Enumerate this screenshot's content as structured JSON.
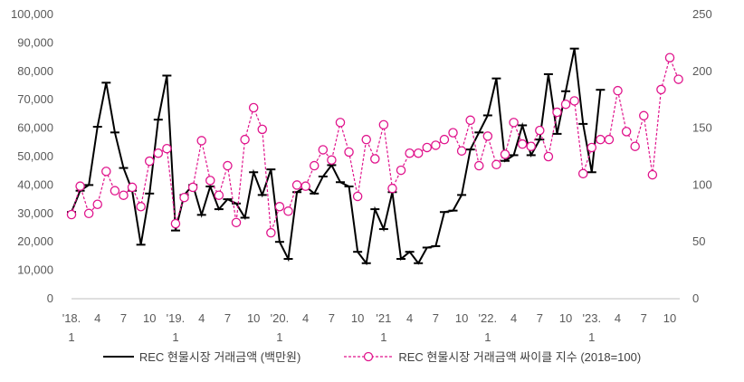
{
  "chart_data": {
    "type": "line",
    "title": "",
    "xlabel": "",
    "ylabel": "",
    "y_left": {
      "ylim": [
        0,
        100000
      ],
      "ticks": [
        "0",
        "10,000",
        "20,000",
        "30,000",
        "40,000",
        "50,000",
        "60,000",
        "70,000",
        "80,000",
        "90,000",
        "100,000"
      ]
    },
    "y_right": {
      "ylim": [
        0,
        250
      ],
      "ticks": [
        "0",
        "50",
        "100",
        "150",
        "200",
        "250"
      ]
    },
    "x_tick_labels": [
      {
        "i": 0,
        "top": "'18.",
        "bottom": "1"
      },
      {
        "i": 3,
        "top": "4",
        "bottom": ""
      },
      {
        "i": 6,
        "top": "7",
        "bottom": ""
      },
      {
        "i": 9,
        "top": "10",
        "bottom": ""
      },
      {
        "i": 12,
        "top": "'19.",
        "bottom": "1"
      },
      {
        "i": 15,
        "top": "4",
        "bottom": ""
      },
      {
        "i": 18,
        "top": "7",
        "bottom": ""
      },
      {
        "i": 21,
        "top": "10",
        "bottom": ""
      },
      {
        "i": 24,
        "top": "'20.",
        "bottom": "1"
      },
      {
        "i": 27,
        "top": "4",
        "bottom": ""
      },
      {
        "i": 30,
        "top": "7",
        "bottom": ""
      },
      {
        "i": 33,
        "top": "10",
        "bottom": ""
      },
      {
        "i": 36,
        "top": "'21",
        "bottom": "1"
      },
      {
        "i": 39,
        "top": "4",
        "bottom": ""
      },
      {
        "i": 42,
        "top": "7",
        "bottom": ""
      },
      {
        "i": 45,
        "top": "10",
        "bottom": ""
      },
      {
        "i": 48,
        "top": "'22.",
        "bottom": "1"
      },
      {
        "i": 51,
        "top": "4",
        "bottom": ""
      },
      {
        "i": 54,
        "top": "7",
        "bottom": ""
      },
      {
        "i": 57,
        "top": "10",
        "bottom": ""
      },
      {
        "i": 60,
        "top": "'23.",
        "bottom": "1"
      },
      {
        "i": 63,
        "top": "4",
        "bottom": ""
      },
      {
        "i": 66,
        "top": "7",
        "bottom": ""
      },
      {
        "i": 69,
        "top": "10",
        "bottom": ""
      }
    ],
    "grid": false,
    "legend_position": "bottom",
    "series": [
      {
        "name": "REC 현물시장 거래금액 (백만원)",
        "axis": "left",
        "color": "#000000",
        "style": "solid",
        "values": [
          30500,
          38000,
          40000,
          60500,
          76000,
          58500,
          46000,
          38000,
          19000,
          37000,
          63000,
          78500,
          24000,
          36500,
          40000,
          29500,
          39500,
          31500,
          35000,
          33500,
          28500,
          44500,
          36500,
          45500,
          20000,
          14000,
          37500,
          39500,
          37000,
          43000,
          47000,
          41000,
          39500,
          16500,
          12500,
          31500,
          24500,
          37500,
          14000,
          16500,
          12500,
          18000,
          18500,
          30500,
          31000,
          36500,
          52500,
          58500,
          64500,
          77500,
          48500,
          50500,
          61000,
          50500,
          56000,
          79000,
          58000,
          73000,
          88000,
          61500,
          44500,
          73500
        ]
      },
      {
        "name": "REC 현물시장 거래금액 싸이클 지수 (2018=100)",
        "axis": "right",
        "color": "#e0148c",
        "style": "dashed-circle",
        "values": [
          74,
          99,
          75,
          83,
          112,
          95,
          91,
          98,
          81,
          121,
          128,
          132,
          66,
          89,
          98,
          139,
          104,
          91,
          117,
          67,
          140,
          168,
          149,
          58,
          81,
          77,
          100,
          99,
          117,
          131,
          122,
          155,
          129,
          90,
          140,
          123,
          153,
          97,
          113,
          128,
          128,
          133,
          135,
          140,
          146,
          130,
          157,
          117,
          143,
          118,
          127,
          155,
          136,
          134,
          148,
          125,
          164,
          171,
          174,
          110,
          133,
          140,
          140,
          183,
          147,
          134,
          161,
          109,
          184,
          212,
          193
        ]
      }
    ]
  }
}
